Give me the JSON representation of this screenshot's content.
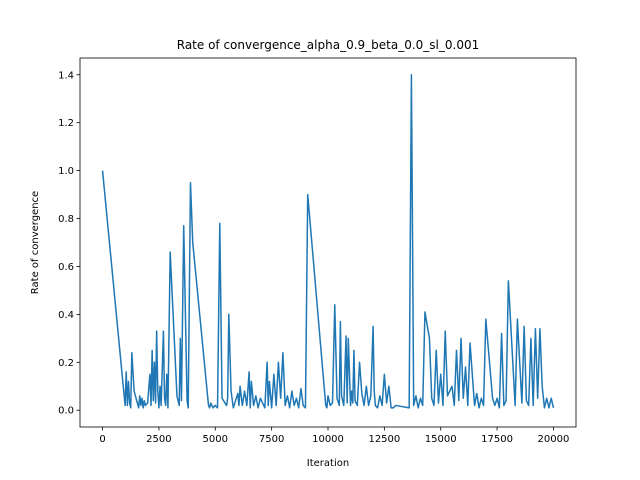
{
  "chart_data": {
    "type": "line",
    "title": "Rate of convergence_alpha_0.9_beta_0.0_sl_0.001",
    "xlabel": "Iteration",
    "ylabel": "Rate of convergence",
    "xlim": [
      -1000,
      21000
    ],
    "ylim": [
      -0.07,
      1.47
    ],
    "xticks": [
      0,
      2500,
      5000,
      7500,
      10000,
      12500,
      15000,
      17500,
      20000
    ],
    "xtick_labels": [
      "0",
      "2500",
      "5000",
      "7500",
      "10000",
      "12500",
      "15000",
      "17500",
      "20000"
    ],
    "yticks": [
      0.0,
      0.2,
      0.4,
      0.6,
      0.8,
      1.0,
      1.2,
      1.4
    ],
    "ytick_labels": [
      "0.0",
      "0.2",
      "0.4",
      "0.6",
      "0.8",
      "1.0",
      "1.2",
      "1.4"
    ],
    "grid": false,
    "legend": "none",
    "line_color": "#1f77b4",
    "series": [
      {
        "x": [
          0,
          1000,
          1050,
          1100,
          1150,
          1200,
          1250,
          1300,
          1400,
          1600,
          1650,
          1700,
          1750,
          1800,
          1850,
          1900,
          2000,
          2100,
          2150,
          2200,
          2250,
          2300,
          2350,
          2400,
          2450,
          2500,
          2550,
          2600,
          2700,
          2750,
          2800,
          2850,
          2900,
          3000,
          3300,
          3350,
          3400,
          3450,
          3500,
          3600,
          3750,
          3800,
          3900,
          4000,
          4700,
          4750,
          4800,
          4900,
          5000,
          5100,
          5200,
          5300,
          5500,
          5550,
          5600,
          5700,
          5800,
          6000,
          6050,
          6100,
          6200,
          6300,
          6400,
          6500,
          6550,
          6600,
          6700,
          6800,
          6900,
          7000,
          7100,
          7200,
          7300,
          7350,
          7400,
          7500,
          7600,
          7700,
          7800,
          7900,
          8000,
          8100,
          8200,
          8300,
          8400,
          8500,
          8600,
          8700,
          8800,
          8900,
          9000,
          9100,
          9900,
          9950,
          10000,
          10100,
          10200,
          10300,
          10400,
          10500,
          10550,
          10600,
          10700,
          10800,
          10850,
          10900,
          11000,
          11050,
          11100,
          11150,
          11200,
          11300,
          11400,
          11500,
          11600,
          11700,
          11800,
          11900,
          12000,
          12050,
          12100,
          12200,
          12300,
          12400,
          12500,
          12600,
          12700,
          12800,
          12900,
          13000,
          13600,
          13700,
          13800,
          13900,
          14000,
          14100,
          14200,
          14300,
          14500,
          14600,
          14700,
          14800,
          14900,
          15000,
          15100,
          15200,
          15300,
          15500,
          15600,
          15700,
          15800,
          15900,
          16000,
          16100,
          16200,
          16300,
          16500,
          16600,
          16700,
          16800,
          16900,
          17000,
          17300,
          17400,
          17500,
          17600,
          17700,
          17800,
          17900,
          18000,
          18300,
          18400,
          18600,
          18700,
          18800,
          18900,
          19000,
          19100,
          19200,
          19300,
          19400,
          19500,
          19600,
          19700,
          19800,
          19900,
          20000
        ],
        "y": [
          1.0,
          0.02,
          0.16,
          0.02,
          0.12,
          0.03,
          0.01,
          0.24,
          0.08,
          0.01,
          0.06,
          0.02,
          0.05,
          0.01,
          0.04,
          0.02,
          0.03,
          0.15,
          0.02,
          0.25,
          0.04,
          0.2,
          0.03,
          0.33,
          0.08,
          0.01,
          0.1,
          0.02,
          0.33,
          0.05,
          0.02,
          0.15,
          0.01,
          0.66,
          0.06,
          0.04,
          0.02,
          0.3,
          0.04,
          0.77,
          0.04,
          0.01,
          0.95,
          0.7,
          0.02,
          0.01,
          0.03,
          0.01,
          0.02,
          0.01,
          0.78,
          0.05,
          0.02,
          0.05,
          0.4,
          0.08,
          0.01,
          0.07,
          0.02,
          0.1,
          0.02,
          0.08,
          0.02,
          0.16,
          0.01,
          0.12,
          0.02,
          0.06,
          0.01,
          0.05,
          0.03,
          0.01,
          0.2,
          0.02,
          0.12,
          0.01,
          0.15,
          0.02,
          0.2,
          0.05,
          0.24,
          0.02,
          0.06,
          0.01,
          0.08,
          0.02,
          0.05,
          0.01,
          0.09,
          0.02,
          0.01,
          0.9,
          0.02,
          0.01,
          0.06,
          0.02,
          0.03,
          0.44,
          0.05,
          0.02,
          0.37,
          0.06,
          0.02,
          0.31,
          0.03,
          0.3,
          0.02,
          0.08,
          0.03,
          0.25,
          0.04,
          0.02,
          0.2,
          0.07,
          0.02,
          0.1,
          0.02,
          0.06,
          0.35,
          0.08,
          0.02,
          0.01,
          0.06,
          0.02,
          0.15,
          0.03,
          0.1,
          0.01,
          0.01,
          0.02,
          0.01,
          1.4,
          0.02,
          0.06,
          0.01,
          0.05,
          0.02,
          0.41,
          0.3,
          0.05,
          0.02,
          0.25,
          0.03,
          0.15,
          0.02,
          0.33,
          0.06,
          0.1,
          0.02,
          0.25,
          0.04,
          0.3,
          0.05,
          0.18,
          0.02,
          0.28,
          0.02,
          0.07,
          0.01,
          0.05,
          0.02,
          0.38,
          0.05,
          0.02,
          0.05,
          0.01,
          0.32,
          0.02,
          0.04,
          0.54,
          0.02,
          0.38,
          0.03,
          0.35,
          0.04,
          0.02,
          0.3,
          0.02,
          0.34,
          0.05,
          0.34,
          0.1,
          0.01,
          0.05,
          0.01,
          0.05,
          0.01
        ]
      }
    ]
  }
}
